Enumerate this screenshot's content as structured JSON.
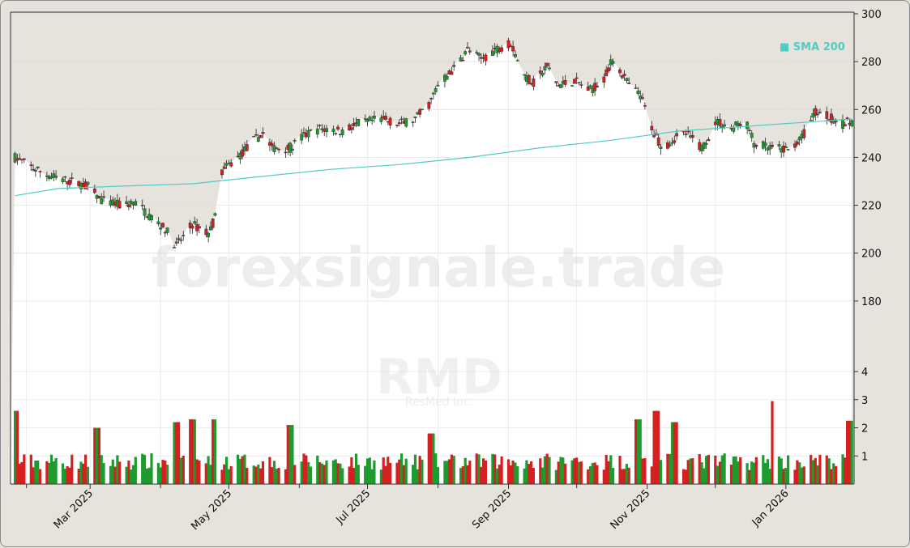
{
  "watermark": {
    "site": "forexsignale.trade",
    "symbol": "RMD",
    "company": "ResMed Inc."
  },
  "legend": {
    "sma_label": "■ SMA 200",
    "sma_color": "#4ecdc4"
  },
  "colors": {
    "up": "#1e9a2f",
    "down": "#d42020",
    "sma": "#4ecdc4"
  },
  "chart_data": {
    "type": "candlestick",
    "title": "",
    "price_axis": {
      "ticks": [
        180,
        200,
        220,
        240,
        260,
        280,
        300
      ],
      "range": [
        160,
        300
      ]
    },
    "volume_axis": {
      "ticks": [
        1,
        2,
        3,
        4
      ],
      "range": [
        0,
        4
      ]
    },
    "x_axis": {
      "range": [
        "2025-01-25",
        "2026-01-31"
      ],
      "labels": [
        {
          "date": "2025-03-01",
          "label": "Mar 2025"
        },
        {
          "date": "2025-05-01",
          "label": "May 2025"
        },
        {
          "date": "2025-07-01",
          "label": "Jul 2025"
        },
        {
          "date": "2025-09-01",
          "label": "Sep 2025"
        },
        {
          "date": "2025-11-01",
          "label": "Nov 2025"
        },
        {
          "date": "2026-01-01",
          "label": "Jan 2026"
        }
      ],
      "minor_ticks": [
        "2025-02-01",
        "2025-04-01",
        "2025-06-01",
        "2025-08-01",
        "2025-10-01",
        "2025-12-01"
      ]
    },
    "price_path": [
      [
        "2025-01-27",
        240
      ],
      [
        "2025-02-05",
        235
      ],
      [
        "2025-02-12",
        232
      ],
      [
        "2025-02-20",
        230
      ],
      [
        "2025-02-28",
        228
      ],
      [
        "2025-03-06",
        222
      ],
      [
        "2025-03-14",
        220
      ],
      [
        "2025-03-21",
        221
      ],
      [
        "2025-03-28",
        215
      ],
      [
        "2025-04-03",
        210
      ],
      [
        "2025-04-08",
        203
      ],
      [
        "2025-04-15",
        212
      ],
      [
        "2025-04-22",
        208
      ],
      [
        "2025-04-25",
        215
      ],
      [
        "2025-04-28",
        234
      ],
      [
        "2025-05-05",
        240
      ],
      [
        "2025-05-12",
        247
      ],
      [
        "2025-05-16",
        250
      ],
      [
        "2025-05-20",
        244
      ],
      [
        "2025-05-28",
        244
      ],
      [
        "2025-06-03",
        249
      ],
      [
        "2025-06-10",
        252
      ],
      [
        "2025-06-20",
        251
      ],
      [
        "2025-06-27",
        254
      ],
      [
        "2025-07-07",
        256
      ],
      [
        "2025-07-15",
        254
      ],
      [
        "2025-07-22",
        256
      ],
      [
        "2025-07-28",
        262
      ],
      [
        "2025-08-01",
        270
      ],
      [
        "2025-08-08",
        277
      ],
      [
        "2025-08-14",
        285
      ],
      [
        "2025-08-20",
        281
      ],
      [
        "2025-08-26",
        285
      ],
      [
        "2025-09-02",
        288
      ],
      [
        "2025-09-08",
        274
      ],
      [
        "2025-09-12",
        271
      ],
      [
        "2025-09-18",
        278
      ],
      [
        "2025-09-23",
        270
      ],
      [
        "2025-09-30",
        272
      ],
      [
        "2025-10-07",
        268
      ],
      [
        "2025-10-13",
        273
      ],
      [
        "2025-10-17",
        281
      ],
      [
        "2025-10-24",
        270
      ],
      [
        "2025-10-29",
        266
      ],
      [
        "2025-11-04",
        250
      ],
      [
        "2025-11-08",
        244
      ],
      [
        "2025-11-13",
        248
      ],
      [
        "2025-11-18",
        250
      ],
      [
        "2025-11-25",
        244
      ],
      [
        "2025-12-02",
        255
      ],
      [
        "2025-12-08",
        252
      ],
      [
        "2025-12-14",
        256
      ],
      [
        "2025-12-18",
        246
      ],
      [
        "2025-12-24",
        244
      ],
      [
        "2026-01-02",
        243
      ],
      [
        "2026-01-08",
        248
      ],
      [
        "2026-01-14",
        259
      ],
      [
        "2026-01-20",
        257
      ],
      [
        "2026-01-26",
        254
      ],
      [
        "2026-01-30",
        255
      ]
    ],
    "volume_spikes": [
      [
        "2025-01-27",
        2.6
      ],
      [
        "2025-03-04",
        2.0
      ],
      [
        "2025-04-08",
        2.2
      ],
      [
        "2025-04-15",
        2.3
      ],
      [
        "2025-04-25",
        2.3
      ],
      [
        "2025-05-28",
        2.1
      ],
      [
        "2025-07-29",
        1.8
      ],
      [
        "2025-10-28",
        2.3
      ],
      [
        "2025-11-05",
        2.6
      ],
      [
        "2025-11-13",
        2.2
      ],
      [
        "2025-12-27",
        2.95
      ],
      [
        "2026-01-29",
        2.25
      ]
    ],
    "sma200": [
      [
        "2025-01-27",
        224
      ],
      [
        "2025-02-15",
        227
      ],
      [
        "2025-03-15",
        228
      ],
      [
        "2025-04-15",
        229
      ],
      [
        "2025-05-15",
        232
      ],
      [
        "2025-06-15",
        235
      ],
      [
        "2025-07-15",
        237
      ],
      [
        "2025-08-15",
        240
      ],
      [
        "2025-09-15",
        244
      ],
      [
        "2025-10-15",
        247
      ],
      [
        "2025-11-15",
        251
      ],
      [
        "2025-12-15",
        253
      ],
      [
        "2026-01-30",
        256
      ]
    ]
  }
}
